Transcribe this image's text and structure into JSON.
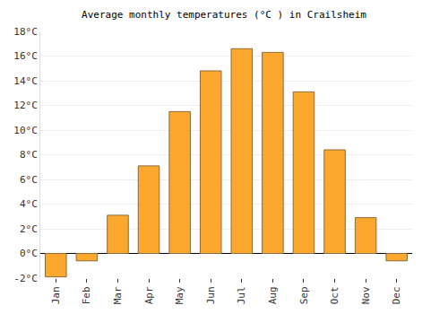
{
  "chart_data": {
    "type": "bar",
    "title": "Average monthly temperatures (°C ) in Crailsheim",
    "categories": [
      "Jan",
      "Feb",
      "Mar",
      "Apr",
      "May",
      "Jun",
      "Jul",
      "Aug",
      "Sep",
      "Oct",
      "Nov",
      "Dec"
    ],
    "values": [
      -1.9,
      -0.6,
      3.1,
      7.1,
      11.5,
      14.8,
      16.6,
      16.3,
      13.1,
      8.4,
      2.9,
      -0.6
    ],
    "color": "#fca72e",
    "ylim": [
      -2,
      18
    ],
    "yticks": [
      {
        "value": -2,
        "label": "-2°C"
      },
      {
        "value": 0,
        "label": "0°C"
      },
      {
        "value": 2,
        "label": "2°C"
      },
      {
        "value": 4,
        "label": "4°C"
      },
      {
        "value": 6,
        "label": "6°C"
      },
      {
        "value": 8,
        "label": "8°C"
      },
      {
        "value": 10,
        "label": "10°C"
      },
      {
        "value": 12,
        "label": "12°C"
      },
      {
        "value": 14,
        "label": "14°C"
      },
      {
        "value": 16,
        "label": "16°C"
      },
      {
        "value": 18,
        "label": "18°C"
      }
    ],
    "grid": true
  }
}
